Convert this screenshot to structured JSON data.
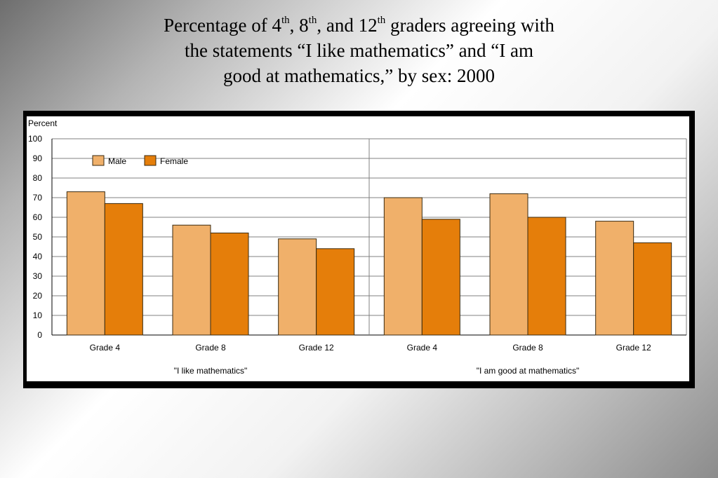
{
  "slide": {
    "title_line1_part1": "Percentage of 4",
    "title_sup1": "th",
    "title_line1_part2": ", 8",
    "title_sup2": "th",
    "title_line1_part3": ", and 12",
    "title_sup3": "th",
    "title_line1_part4": " graders agreeing with",
    "title_line2": "the statements “I like mathematics” and “I am",
    "title_line3": "good at mathematics,” by sex: 2000"
  },
  "colors": {
    "male": "#F0B06A",
    "female": "#E57E0A",
    "grid": "#808080"
  },
  "chart_data": {
    "type": "bar",
    "ylabel": "Percent",
    "ylim": [
      0,
      100
    ],
    "yticks": [
      0,
      10,
      20,
      30,
      40,
      50,
      60,
      70,
      80,
      90,
      100
    ],
    "grid": true,
    "legend_position": "top-left",
    "groups": [
      {
        "label": "\"I like mathematics\"",
        "categories": [
          "Grade 4",
          "Grade 8",
          "Grade 12"
        ]
      },
      {
        "label": "\"I am good at mathematics\"",
        "categories": [
          "Grade 4",
          "Grade 8",
          "Grade 12"
        ]
      }
    ],
    "categories": [
      "Grade 4",
      "Grade 8",
      "Grade 12",
      "Grade 4",
      "Grade 8",
      "Grade 12"
    ],
    "series": [
      {
        "name": "Male",
        "values": [
          73,
          56,
          49,
          70,
          72,
          58
        ]
      },
      {
        "name": "Female",
        "values": [
          67,
          52,
          44,
          59,
          60,
          47
        ]
      }
    ]
  }
}
